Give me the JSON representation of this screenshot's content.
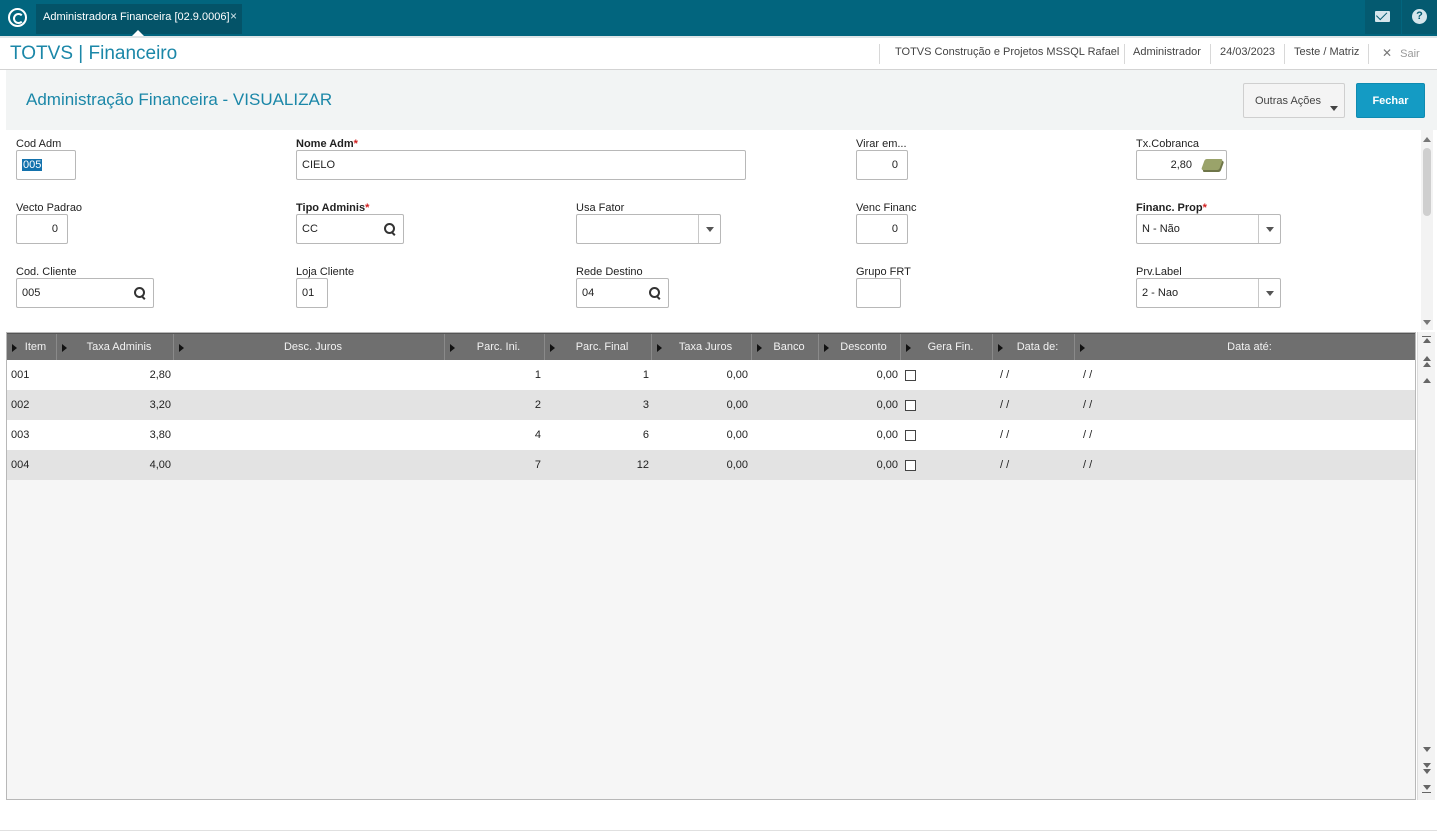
{
  "app": {
    "tab_label": "Administradora Financeira [02.9.0006]",
    "tab_close": "×",
    "help_glyph": "?"
  },
  "header": {
    "module_title": "TOTVS | Financeiro",
    "company": "TOTVS Construção e Projetos MSSQL Rafael",
    "user": "Administrador",
    "date": "24/03/2023",
    "branch": "Teste / Matriz",
    "exit_label": "Sair",
    "exit_glyph": "✕"
  },
  "page": {
    "title": "Administração Financeira - VISUALIZAR",
    "outras_label": "Outras Ações",
    "fechar_label": "Fechar"
  },
  "form": {
    "cod_adm": {
      "label": "Cod Adm",
      "value": "005"
    },
    "nome_adm": {
      "label": "Nome Adm",
      "value": "CIELO"
    },
    "virar_em": {
      "label": "Virar em...",
      "value": "0"
    },
    "tx_cobranca": {
      "label": "Tx.Cobranca",
      "value": "2,80"
    },
    "vecto_padrao": {
      "label": "Vecto Padrao",
      "value": "0"
    },
    "tipo_adminis": {
      "label": "Tipo Adminis",
      "value": "CC"
    },
    "usa_fator": {
      "label": "Usa Fator",
      "value": ""
    },
    "venc_financ": {
      "label": "Venc Financ",
      "value": "0"
    },
    "financ_prop": {
      "label": "Financ. Prop",
      "value": "N - Não"
    },
    "cod_cliente": {
      "label": "Cod. Cliente",
      "value": "005"
    },
    "loja_cliente": {
      "label": "Loja Cliente",
      "value": "01"
    },
    "rede_destino": {
      "label": "Rede Destino",
      "value": "04"
    },
    "grupo_frt": {
      "label": "Grupo FRT",
      "value": ""
    },
    "prv_label": {
      "label": "Prv.Label",
      "value": "2 - Nao"
    },
    "required_mark": "*"
  },
  "grid": {
    "columns": [
      "Item",
      "Taxa Adminis",
      "Desc. Juros",
      "Parc. Ini.",
      "Parc. Final",
      "Taxa Juros",
      "Banco",
      "Desconto",
      "Gera Fin.",
      "Data de:",
      "Data até:"
    ],
    "rows": [
      {
        "item": "001",
        "taxa_adminis": "2,80",
        "desc_juros": "",
        "parc_ini": "1",
        "parc_final": "1",
        "taxa_juros": "0,00",
        "banco": "",
        "desconto": "0,00",
        "data_de": "/ /",
        "data_ate": "/ /"
      },
      {
        "item": "002",
        "taxa_adminis": "3,20",
        "desc_juros": "",
        "parc_ini": "2",
        "parc_final": "3",
        "taxa_juros": "0,00",
        "banco": "",
        "desconto": "0,00",
        "data_de": "/ /",
        "data_ate": "/ /"
      },
      {
        "item": "003",
        "taxa_adminis": "3,80",
        "desc_juros": "",
        "parc_ini": "4",
        "parc_final": "6",
        "taxa_juros": "0,00",
        "banco": "",
        "desconto": "0,00",
        "data_de": "/ /",
        "data_ate": "/ /"
      },
      {
        "item": "004",
        "taxa_adminis": "4,00",
        "desc_juros": "",
        "parc_ini": "7",
        "parc_final": "12",
        "taxa_juros": "0,00",
        "banco": "",
        "desconto": "0,00",
        "data_de": "/ /",
        "data_ate": "/ /"
      }
    ]
  },
  "colors": {
    "topbar": "#02657e",
    "accent": "#1b87a8",
    "primary_button": "#149bc4",
    "required": "#d21f1f",
    "grid_header": "#6f6f6f"
  }
}
